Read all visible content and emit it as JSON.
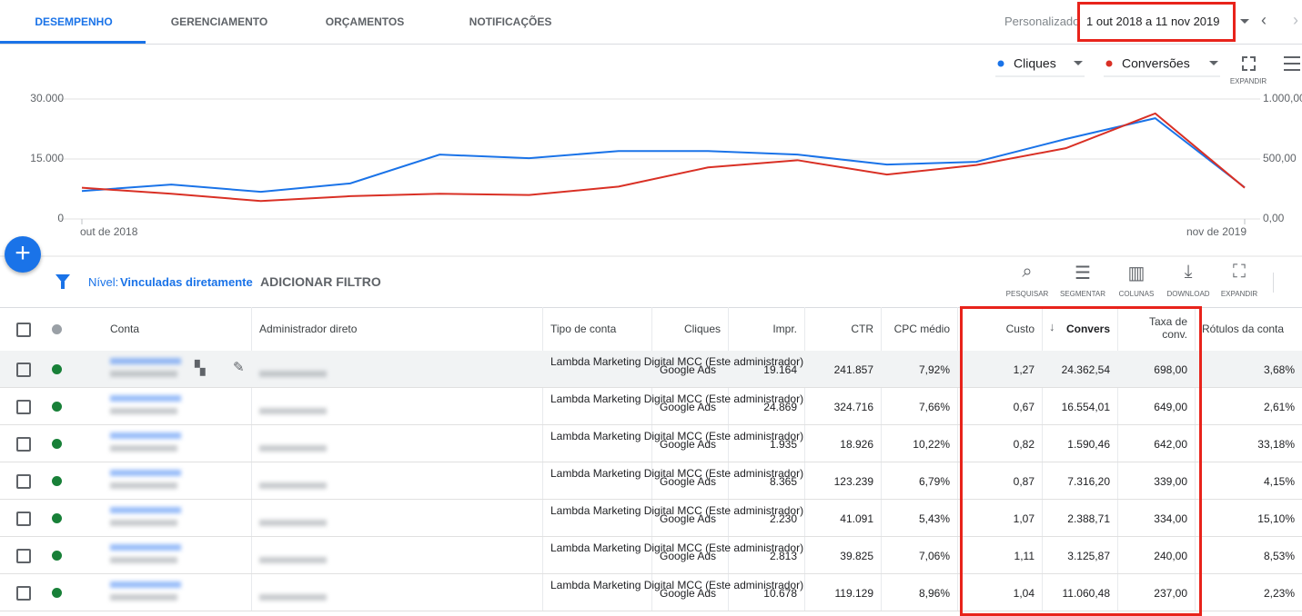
{
  "tabs": [
    "DESEMPENHO",
    "GERENCIAMENTO",
    "ORÇAMENTOS",
    "NOTIFICAÇÕES"
  ],
  "date_picker": {
    "label": "Personalizado",
    "range": "1 out 2018 a 11 nov 2019"
  },
  "chart_data": {
    "type": "line",
    "categories": [
      "out de 2018",
      null,
      null,
      null,
      null,
      null,
      null,
      null,
      null,
      null,
      null,
      null,
      null,
      "nov de 2019"
    ],
    "series": [
      {
        "name": "Cliques",
        "color": "#1a73e8",
        "values": [
          7000,
          8600,
          6800,
          8900,
          16100,
          15200,
          17000,
          17000,
          16100,
          13600,
          14300,
          20000,
          25200,
          7900
        ]
      },
      {
        "name": "Conversões",
        "color": "#d93025",
        "axis": "y2",
        "values": [
          260,
          210,
          150,
          190,
          210,
          200,
          270,
          430,
          490,
          370,
          450,
          590,
          880,
          260
        ]
      }
    ],
    "ylim": [
      0,
      30000
    ],
    "yticks": [
      0,
      {
        "value": 15000,
        "label": "15.000"
      },
      {
        "value": 30000,
        "label": "30.000"
      }
    ],
    "y2lim": [
      0,
      1000
    ],
    "y2ticks": [
      {
        "value": 0,
        "label": "0,00"
      },
      {
        "value": 500,
        "label": "500,00"
      },
      {
        "value": 1000,
        "label": "1.000,00"
      }
    ],
    "grid": true
  },
  "chart_controls": {
    "expand": "EXPANDIR"
  },
  "filter": {
    "level_label": "Nível:",
    "level": "Vinculadas diretamente",
    "add_filter": "ADICIONAR FILTRO"
  },
  "toolbar": [
    "PESQUISAR",
    "SEGMENTAR",
    "COLUNAS",
    "DOWNLOAD",
    "EXPANDIR"
  ],
  "table": {
    "columns": [
      "Conta",
      "Administrador direto",
      "Tipo de conta",
      "Cliques",
      "Impr.",
      "CTR",
      "CPC médio",
      "Custo",
      "Convers",
      "Taxa de conv.",
      "Rótulos da conta"
    ],
    "rows": [
      [
        "Lambda Marketing Digital MCC (Este administrador)",
        "Google Ads",
        "19.164",
        "241.857",
        "7,92%",
        "1,27",
        "24.362,54",
        "698,00",
        "3,68%"
      ],
      [
        "Lambda Marketing Digital MCC (Este administrador)",
        "Google Ads",
        "24.869",
        "324.716",
        "7,66%",
        "0,67",
        "16.554,01",
        "649,00",
        "2,61%"
      ],
      [
        "Lambda Marketing Digital MCC (Este administrador)",
        "Google Ads",
        "1.935",
        "18.926",
        "10,22%",
        "0,82",
        "1.590,46",
        "642,00",
        "33,18%"
      ],
      [
        "Lambda Marketing Digital MCC (Este administrador)",
        "Google Ads",
        "8.365",
        "123.239",
        "6,79%",
        "0,87",
        "7.316,20",
        "339,00",
        "4,15%"
      ],
      [
        "Lambda Marketing Digital MCC (Este administrador)",
        "Google Ads",
        "2.230",
        "41.091",
        "5,43%",
        "1,07",
        "2.388,71",
        "334,00",
        "15,10%"
      ],
      [
        "Lambda Marketing Digital MCC (Este administrador)",
        "Google Ads",
        "2.813",
        "39.825",
        "7,06%",
        "1,11",
        "3.125,87",
        "240,00",
        "8,53%"
      ],
      [
        "Lambda Marketing Digital MCC (Este administrador)",
        "Google Ads",
        "10.678",
        "119.129",
        "8,96%",
        "1,04",
        "11.060,48",
        "237,00",
        "2,23%"
      ]
    ]
  }
}
